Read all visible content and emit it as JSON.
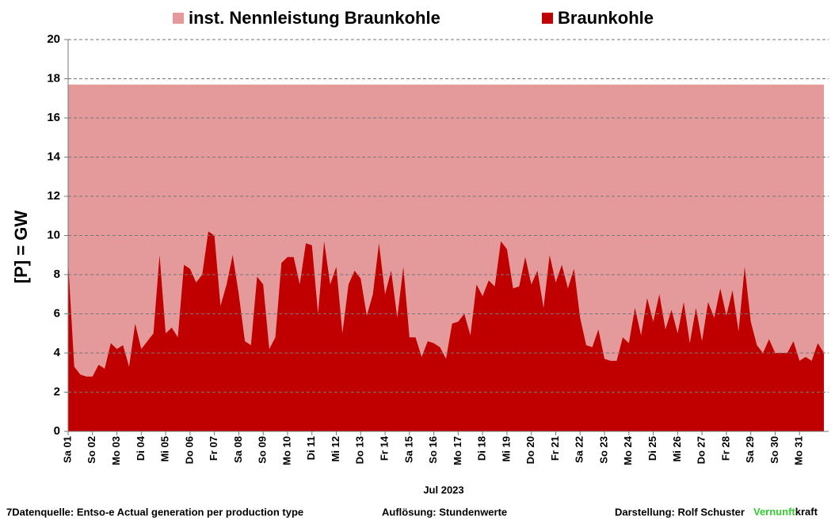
{
  "chart_data": {
    "type": "area",
    "categories": [
      "Sa 01",
      null,
      null,
      null,
      "So 02",
      null,
      null,
      null,
      "Mo 03",
      null,
      null,
      null,
      "Di 04",
      null,
      null,
      null,
      "Mi 05",
      null,
      null,
      null,
      "Do 06",
      null,
      null,
      null,
      "Fr 07",
      null,
      null,
      null,
      "Sa 08",
      null,
      null,
      null,
      "So 09",
      null,
      null,
      null,
      "Mo 10",
      null,
      null,
      null,
      "Di 11",
      null,
      null,
      null,
      "Mi 12",
      null,
      null,
      null,
      "Do 13",
      null,
      null,
      null,
      "Fr 14",
      null,
      null,
      null,
      "Sa 15",
      null,
      null,
      null,
      "So 16",
      null,
      null,
      null,
      "Mo 17",
      null,
      null,
      null,
      "Di 18",
      null,
      null,
      null,
      "Mi 19",
      null,
      null,
      null,
      "Do 20",
      null,
      null,
      null,
      "Fr 21",
      null,
      null,
      null,
      "Sa 22",
      null,
      null,
      null,
      "So 23",
      null,
      null,
      null,
      "Mo 24",
      null,
      null,
      null,
      "Di 25",
      null,
      null,
      null,
      "Mi 26",
      null,
      null,
      null,
      "Do 27",
      null,
      null,
      null,
      "Fr 28",
      null,
      null,
      null,
      "Sa 29",
      null,
      null,
      null,
      "So 30",
      null,
      null,
      null,
      "Mo 31",
      null,
      null,
      null,
      null
    ],
    "series": [
      {
        "name": "inst. Nennleistung Braunkohle",
        "color": "#e49a9a",
        "values": [
          17.7,
          17.7,
          17.7,
          17.7,
          17.7,
          17.7,
          17.7,
          17.7,
          17.7,
          17.7,
          17.7,
          17.7,
          17.7,
          17.7,
          17.7,
          17.7,
          17.7,
          17.7,
          17.7,
          17.7,
          17.7,
          17.7,
          17.7,
          17.7,
          17.7,
          17.7,
          17.7,
          17.7,
          17.7,
          17.7,
          17.7,
          17.7,
          17.7,
          17.7,
          17.7,
          17.7,
          17.7,
          17.7,
          17.7,
          17.7,
          17.7,
          17.7,
          17.7,
          17.7,
          17.7,
          17.7,
          17.7,
          17.7,
          17.7,
          17.7,
          17.7,
          17.7,
          17.7,
          17.7,
          17.7,
          17.7,
          17.7,
          17.7,
          17.7,
          17.7,
          17.7,
          17.7,
          17.7,
          17.7,
          17.7,
          17.7,
          17.7,
          17.7,
          17.7,
          17.7,
          17.7,
          17.7,
          17.7,
          17.7,
          17.7,
          17.7,
          17.7,
          17.7,
          17.7,
          17.7,
          17.7,
          17.7,
          17.7,
          17.7,
          17.7,
          17.7,
          17.7,
          17.7,
          17.7,
          17.7,
          17.7,
          17.7,
          17.7,
          17.7,
          17.7,
          17.7,
          17.7,
          17.7,
          17.7,
          17.7,
          17.7,
          17.7,
          17.7,
          17.7,
          17.7,
          17.7,
          17.7,
          17.7,
          17.7,
          17.7,
          17.7,
          17.7,
          17.7,
          17.7,
          17.7,
          17.7,
          17.7,
          17.7,
          17.7,
          17.7,
          17.7,
          17.7,
          17.7,
          17.7,
          17.7
        ]
      },
      {
        "name": "Braunkohle",
        "color": "#c00000",
        "values": [
          8.7,
          3.3,
          2.9,
          2.8,
          2.8,
          3.4,
          3.2,
          4.5,
          4.2,
          4.4,
          3.3,
          5.5,
          4.2,
          4.6,
          5.0,
          9.0,
          5.0,
          5.3,
          4.8,
          8.5,
          8.3,
          7.6,
          8.0,
          10.2,
          10.0,
          6.4,
          7.5,
          9.0,
          7.0,
          4.6,
          4.4,
          7.9,
          7.5,
          4.2,
          4.8,
          8.6,
          8.9,
          8.9,
          7.5,
          9.6,
          9.5,
          6.0,
          9.7,
          7.5,
          8.4,
          5.0,
          7.5,
          8.2,
          7.8,
          5.9,
          7.0,
          9.6,
          7.0,
          8.2,
          5.8,
          8.4,
          4.8,
          4.8,
          3.8,
          4.6,
          4.5,
          4.3,
          3.7,
          5.5,
          5.6,
          6.0,
          4.9,
          7.5,
          6.9,
          7.7,
          7.4,
          9.7,
          9.3,
          7.3,
          7.4,
          8.9,
          7.5,
          8.2,
          6.3,
          9.0,
          7.6,
          8.5,
          7.3,
          8.3,
          5.8,
          4.4,
          4.3,
          5.2,
          3.7,
          3.6,
          3.6,
          4.8,
          4.5,
          6.3,
          4.9,
          6.8,
          5.6,
          7.0,
          5.2,
          6.2,
          5.0,
          6.6,
          4.5,
          6.3,
          4.6,
          6.6,
          5.8,
          7.3,
          5.9,
          7.2,
          5.1,
          8.4,
          5.6,
          4.4,
          4.0,
          4.7,
          4.0,
          4.0,
          4.0,
          4.6,
          3.6,
          3.8,
          3.6,
          4.5,
          4.0
        ]
      }
    ],
    "ylabel": "[P]  = GW",
    "xlabel": "Jul 2023",
    "ylim": [
      0,
      20
    ],
    "yticks": [
      0,
      2,
      4,
      6,
      8,
      10,
      12,
      14,
      16,
      18,
      20
    ],
    "grid": true,
    "legend": "top",
    "footer": {
      "source": "7Datenquelle: Entso-e  Actual generation per production type",
      "resolution": "Auflösung: Stundenwerte",
      "author": "Darstellung:  Rolf Schuster",
      "brand1": "Vernunft",
      "brand2": "kraft"
    }
  }
}
